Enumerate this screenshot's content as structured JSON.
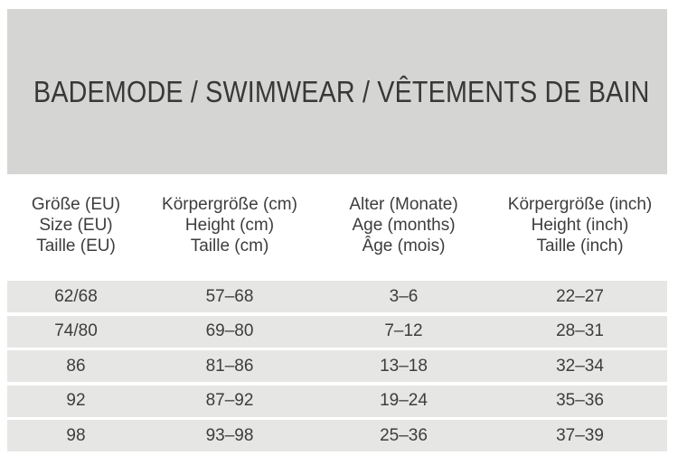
{
  "banner": {
    "title": "BADEMODE / SWIMWEAR / VÊTEMENTS DE BAIN",
    "background": "#d5d5d3",
    "text_color": "#383838"
  },
  "table": {
    "row_background": "#e6e6e4",
    "columns": [
      {
        "lines": [
          "Größe (EU)",
          "Size (EU)",
          "Taille (EU)"
        ]
      },
      {
        "lines": [
          "Körpergröße (cm)",
          "Height (cm)",
          "Taille (cm)"
        ]
      },
      {
        "lines": [
          "Alter (Monate)",
          "Age (months)",
          "Âge (mois)"
        ]
      },
      {
        "lines": [
          "Körpergröße (inch)",
          "Height (inch)",
          "Taille (inch)"
        ]
      }
    ],
    "rows": [
      [
        "62/68",
        "57–68",
        "3–6",
        "22–27"
      ],
      [
        "74/80",
        "69–80",
        "7–12",
        "28–31"
      ],
      [
        "86",
        "81–86",
        "13–18",
        "32–34"
      ],
      [
        "92",
        "87–92",
        "19–24",
        "35–36"
      ],
      [
        "98",
        "93–98",
        "25–36",
        "37–39"
      ]
    ]
  },
  "chart_data": {
    "type": "table",
    "title": "BADEMODE / SWIMWEAR / VÊTEMENTS DE BAIN",
    "columns": [
      "Größe (EU) / Size (EU) / Taille (EU)",
      "Körpergröße (cm) / Height (cm) / Taille (cm)",
      "Alter (Monate) / Age (months) / Âge (mois)",
      "Körpergröße (inch) / Height (inch) / Taille (inch)"
    ],
    "rows": [
      [
        "62/68",
        "57–68",
        "3–6",
        "22–27"
      ],
      [
        "74/80",
        "69–80",
        "7–12",
        "28–31"
      ],
      [
        "86",
        "81–86",
        "13–18",
        "32–34"
      ],
      [
        "92",
        "87–92",
        "19–24",
        "35–36"
      ],
      [
        "98",
        "93–98",
        "25–36",
        "37–39"
      ]
    ]
  }
}
